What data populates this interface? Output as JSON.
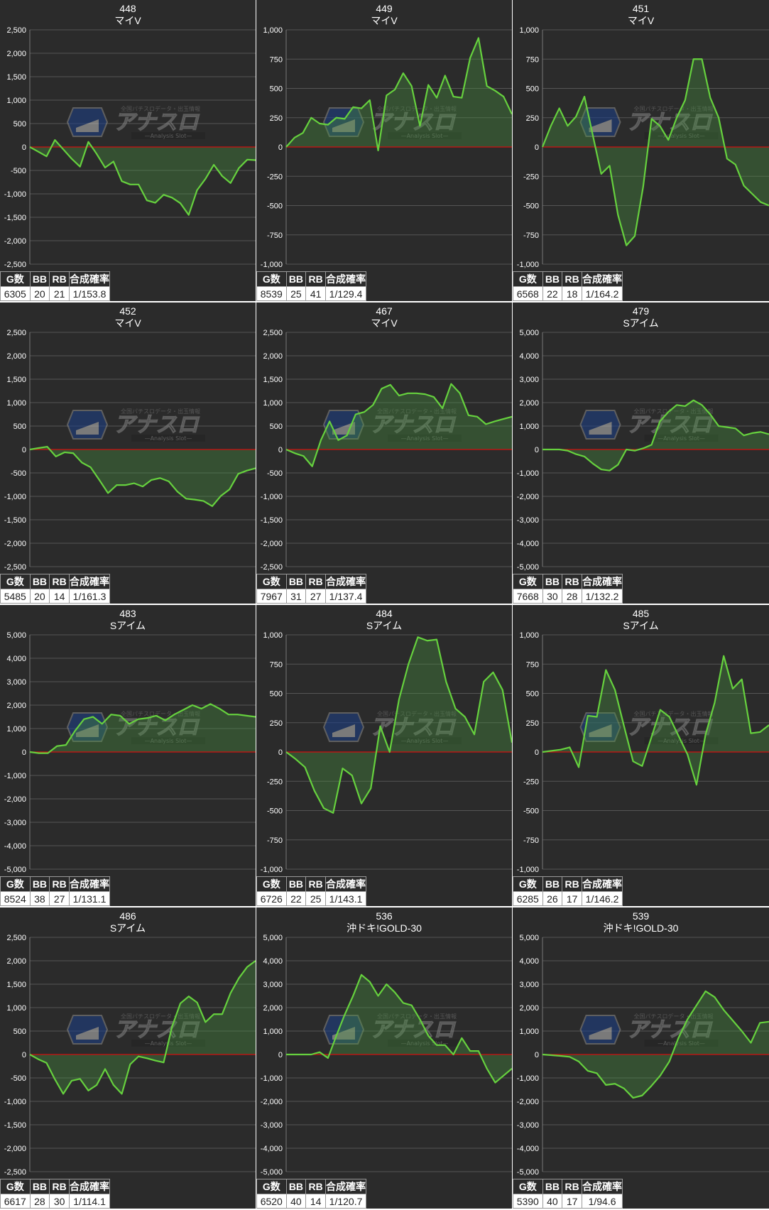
{
  "colors": {
    "panel_bg": "#2b2b2b",
    "line": "#66d13e",
    "fill": "rgba(72,150,64,0.35)",
    "zero_line": "#d01010",
    "grid": "#555555",
    "text": "#ffffff"
  },
  "watermark": {
    "logo_text": "アナスロ",
    "top_text": "全国パチスロデータ・出玉情報",
    "bottom_text": "Analysis Slot"
  },
  "table_headers": [
    "G数",
    "BB",
    "RB",
    "合成確率"
  ],
  "chart_data": [
    {
      "type": "line",
      "id": "448",
      "name": "マイV",
      "ylim": [
        -2500,
        2500
      ],
      "yticks": [
        2500,
        2000,
        1500,
        1000,
        500,
        0,
        -500,
        -1000,
        -1500,
        -2000,
        -2500
      ],
      "y": [
        0,
        -100,
        -200,
        150,
        -50,
        -250,
        -420,
        110,
        -150,
        -440,
        -310,
        -730,
        -800,
        -800,
        -1140,
        -1190,
        -1020,
        -1080,
        -1200,
        -1450,
        -920,
        -680,
        -380,
        -620,
        -770,
        -450,
        -270,
        -280
      ],
      "stats": {
        "games": "6305",
        "bb": "20",
        "rb": "21",
        "prob": "1/153.8"
      }
    },
    {
      "type": "line",
      "id": "449",
      "name": "マイV",
      "ylim": [
        -1000,
        1000
      ],
      "yticks": [
        1000,
        750,
        500,
        250,
        0,
        -250,
        -500,
        -750,
        -1000
      ],
      "y": [
        0,
        80,
        120,
        250,
        200,
        190,
        250,
        240,
        340,
        330,
        400,
        -30,
        440,
        490,
        630,
        520,
        180,
        530,
        420,
        610,
        430,
        420,
        760,
        930,
        520,
        480,
        430,
        280
      ],
      "stats": {
        "games": "8539",
        "bb": "25",
        "rb": "41",
        "prob": "1/129.4"
      }
    },
    {
      "type": "line",
      "id": "451",
      "name": "マイV",
      "ylim": [
        -1000,
        1000
      ],
      "yticks": [
        1000,
        750,
        500,
        250,
        0,
        -250,
        -500,
        -750,
        -1000
      ],
      "y": [
        0,
        180,
        330,
        180,
        260,
        430,
        100,
        -230,
        -160,
        -580,
        -840,
        -760,
        -340,
        240,
        180,
        60,
        250,
        400,
        750,
        750,
        420,
        250,
        -100,
        -150,
        -330,
        -400,
        -470,
        -500
      ],
      "stats": {
        "games": "6568",
        "bb": "22",
        "rb": "18",
        "prob": "1/164.2"
      }
    },
    {
      "type": "line",
      "id": "452",
      "name": "マイV",
      "ylim": [
        -2500,
        2500
      ],
      "yticks": [
        2500,
        2000,
        1500,
        1000,
        500,
        0,
        -500,
        -1000,
        -1500,
        -2000,
        -2500
      ],
      "y": [
        0,
        30,
        60,
        -150,
        -60,
        -80,
        -280,
        -380,
        -650,
        -930,
        -760,
        -760,
        -720,
        -790,
        -650,
        -610,
        -680,
        -900,
        -1050,
        -1070,
        -1100,
        -1210,
        -990,
        -850,
        -520,
        -450,
        -400
      ],
      "stats": {
        "games": "5485",
        "bb": "20",
        "rb": "14",
        "prob": "1/161.3"
      }
    },
    {
      "type": "line",
      "id": "467",
      "name": "マイV",
      "ylim": [
        -2500,
        2500
      ],
      "yticks": [
        2500,
        2000,
        1500,
        1000,
        500,
        0,
        -500,
        -1000,
        -1500,
        -2000,
        -2500
      ],
      "y": [
        0,
        -80,
        -140,
        -360,
        200,
        600,
        200,
        300,
        750,
        800,
        950,
        1300,
        1380,
        1150,
        1200,
        1200,
        1180,
        1120,
        880,
        1400,
        1200,
        730,
        700,
        540,
        600,
        650,
        700
      ],
      "stats": {
        "games": "7967",
        "bb": "31",
        "rb": "27",
        "prob": "1/137.4"
      }
    },
    {
      "type": "line",
      "id": "479",
      "name": "Sアイム",
      "ylim": [
        -5000,
        5000
      ],
      "yticks": [
        5000,
        4000,
        3000,
        2000,
        1000,
        0,
        -1000,
        -2000,
        -3000,
        -4000,
        -5000
      ],
      "y": [
        0,
        0,
        0,
        -50,
        -200,
        -300,
        -600,
        -850,
        -900,
        -650,
        0,
        -50,
        50,
        200,
        1200,
        1600,
        1900,
        1850,
        2100,
        1900,
        1500,
        1000,
        950,
        900,
        600,
        700,
        750,
        650
      ],
      "stats": {
        "games": "7668",
        "bb": "30",
        "rb": "28",
        "prob": "1/132.2"
      }
    },
    {
      "type": "line",
      "id": "483",
      "name": "Sアイム",
      "ylim": [
        -5000,
        5000
      ],
      "yticks": [
        5000,
        4000,
        3000,
        2000,
        1000,
        0,
        -1000,
        -2000,
        -3000,
        -4000,
        -5000
      ],
      "y": [
        0,
        -50,
        -50,
        250,
        300,
        900,
        1400,
        1500,
        1200,
        1600,
        1550,
        1200,
        1400,
        1450,
        1550,
        1350,
        1600,
        1800,
        2000,
        1850,
        2050,
        1850,
        1600,
        1600,
        1550,
        1500
      ],
      "stats": {
        "games": "8524",
        "bb": "38",
        "rb": "27",
        "prob": "1/131.1"
      }
    },
    {
      "type": "line",
      "id": "484",
      "name": "Sアイム",
      "ylim": [
        -1000,
        1000
      ],
      "yticks": [
        1000,
        750,
        500,
        250,
        0,
        -250,
        -500,
        -750,
        -1000
      ],
      "y": [
        0,
        -60,
        -130,
        -330,
        -480,
        -520,
        -140,
        -200,
        -440,
        -310,
        220,
        0,
        450,
        750,
        980,
        950,
        960,
        600,
        370,
        300,
        150,
        600,
        680,
        530,
        80
      ],
      "stats": {
        "games": "6726",
        "bb": "22",
        "rb": "25",
        "prob": "1/143.1"
      }
    },
    {
      "type": "line",
      "id": "485",
      "name": "Sアイム",
      "ylim": [
        -1000,
        1000
      ],
      "yticks": [
        1000,
        750,
        500,
        250,
        0,
        -250,
        -500,
        -750,
        -1000
      ],
      "y": [
        0,
        10,
        20,
        40,
        -130,
        310,
        300,
        700,
        530,
        220,
        -80,
        -120,
        120,
        360,
        300,
        140,
        -20,
        -280,
        150,
        420,
        820,
        540,
        620,
        160,
        170,
        230
      ],
      "stats": {
        "games": "6285",
        "bb": "26",
        "rb": "17",
        "prob": "1/146.2"
      }
    },
    {
      "type": "line",
      "id": "486",
      "name": "Sアイム",
      "ylim": [
        -2500,
        2500
      ],
      "yticks": [
        2500,
        2000,
        1500,
        1000,
        500,
        0,
        -500,
        -1000,
        -1500,
        -2000,
        -2500
      ],
      "y": [
        0,
        -100,
        -180,
        -530,
        -840,
        -560,
        -520,
        -770,
        -650,
        -310,
        -650,
        -840,
        -210,
        -40,
        -80,
        -130,
        -170,
        590,
        1090,
        1240,
        1110,
        690,
        860,
        860,
        1310,
        1630,
        1870,
        2000
      ],
      "stats": {
        "games": "6617",
        "bb": "28",
        "rb": "30",
        "prob": "1/114.1"
      }
    },
    {
      "type": "line",
      "id": "536",
      "name": "沖ドキ!GOLD-30",
      "ylim": [
        -5000,
        5000
      ],
      "yticks": [
        5000,
        4000,
        3000,
        2000,
        1000,
        0,
        -1000,
        -2000,
        -3000,
        -4000,
        -5000
      ],
      "y": [
        0,
        0,
        0,
        0,
        100,
        -150,
        800,
        1700,
        2500,
        3400,
        3100,
        2500,
        3000,
        2650,
        2200,
        2100,
        1500,
        800,
        400,
        400,
        0,
        700,
        150,
        150,
        -600,
        -1200,
        -900,
        -600
      ],
      "stats": {
        "games": "6520",
        "bb": "40",
        "rb": "14",
        "prob": "1/120.7"
      }
    },
    {
      "type": "line",
      "id": "539",
      "name": "沖ドキ!GOLD-30",
      "ylim": [
        -5000,
        5000
      ],
      "yticks": [
        5000,
        4000,
        3000,
        2000,
        1000,
        0,
        -1000,
        -2000,
        -3000,
        -4000,
        -5000
      ],
      "y": [
        0,
        -30,
        -60,
        -100,
        -300,
        -700,
        -800,
        -1300,
        -1250,
        -1450,
        -1850,
        -1750,
        -1350,
        -900,
        -300,
        700,
        1500,
        2100,
        2700,
        2450,
        1900,
        1450,
        1000,
        500,
        1350,
        1400
      ],
      "stats": {
        "games": "5390",
        "bb": "40",
        "rb": "17",
        "prob": "1/94.6"
      }
    }
  ]
}
